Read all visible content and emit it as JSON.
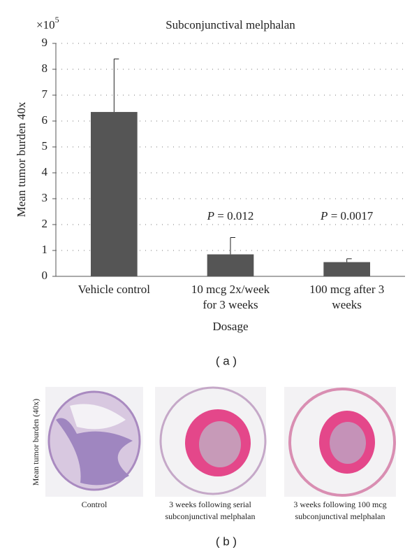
{
  "chart_data": {
    "type": "bar",
    "title": "Subconjunctival melphalan",
    "y_label": "Mean tumor burden 40x",
    "y_multiplier": {
      "base": "×10",
      "exponent": "5"
    },
    "x_label": "Dosage",
    "categories": [
      [
        "Vehicle control"
      ],
      [
        "10 mcg 2x/week",
        "for 3 weeks"
      ],
      [
        "100 mcg after 3",
        "weeks"
      ]
    ],
    "values": [
      6.35,
      0.85,
      0.55
    ],
    "errors": [
      2.05,
      0.65,
      0.13
    ],
    "color": "#555555",
    "annotations": [
      null,
      {
        "italic": "P",
        "rest": " = 0.012"
      },
      {
        "italic": "P",
        "rest": " = 0.0017"
      }
    ],
    "ylim": [
      0,
      9
    ],
    "yticks": [
      0,
      1,
      2,
      3,
      4,
      5,
      6,
      7,
      8,
      9
    ],
    "grid": true
  },
  "panel_a_label": "( a )",
  "panel_b": {
    "side_label": "Mean tumor burden (40x)",
    "captions": [
      [
        "Control"
      ],
      [
        "3 weeks following serial",
        "subconjunctival melphalan"
      ],
      [
        "3 weeks following 100 mcg",
        "subconjunctival melphalan"
      ]
    ],
    "label": "( b )"
  }
}
